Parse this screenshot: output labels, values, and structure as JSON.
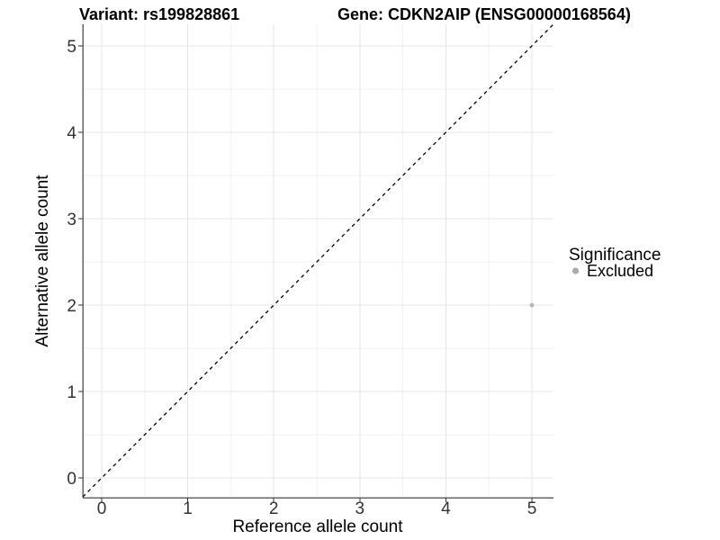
{
  "titles": {
    "left": "Variant: rs199828861",
    "right": "Gene: CDKN2AIP (ENSG00000168564)"
  },
  "legend": {
    "title": "Significance",
    "position": "right",
    "items": [
      {
        "label": "Excluded",
        "color": "#aaaaaa",
        "marker": "circle"
      }
    ]
  },
  "chart_data": {
    "type": "scatter",
    "xlabel": "Reference allele count",
    "ylabel": "Alternative allele count",
    "xlim": [
      -0.22,
      5.25
    ],
    "ylim": [
      -0.22,
      5.25
    ],
    "xticks": [
      0,
      1,
      2,
      3,
      4,
      5
    ],
    "yticks": [
      0,
      1,
      2,
      3,
      4,
      5
    ],
    "grid": {
      "major": true,
      "minor": true,
      "major_color": "#e6e6e6",
      "minor_color": "#f2f2f2"
    },
    "axis_line_color": "#666666",
    "tick_color": "#333333",
    "reference_line": {
      "kind": "identity_y_equals_x",
      "style": "dashed",
      "color": "#000000"
    },
    "series": [
      {
        "name": "Excluded",
        "color": "#b5b5b5",
        "points": [
          {
            "x": 5,
            "y": 2
          }
        ],
        "point_radius": 2.4
      }
    ],
    "legend_position": "right"
  }
}
